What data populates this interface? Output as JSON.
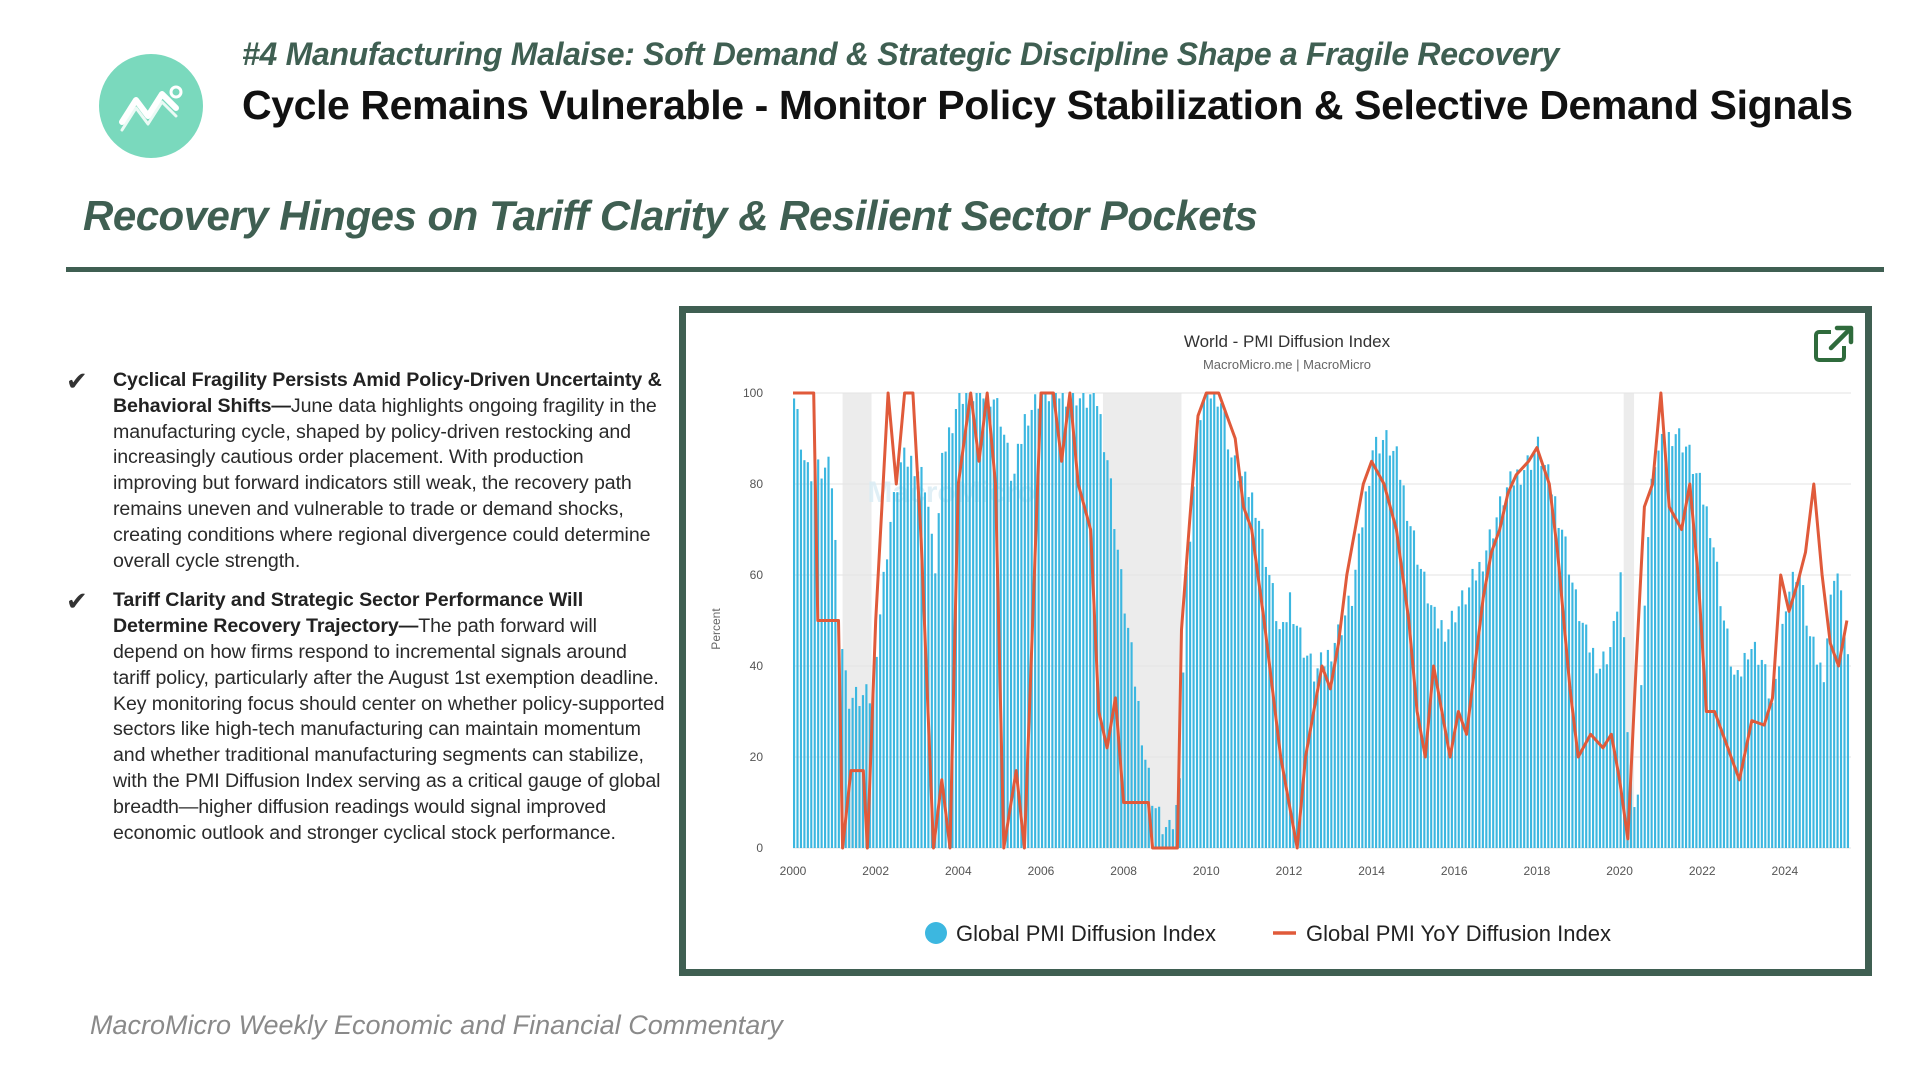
{
  "header": {
    "kicker": "#4 Manufacturing Malaise: Soft Demand & Strategic Discipline Shape a Fragile Recovery",
    "title": "Cycle Remains Vulnerable - Monitor Policy Stabilization & Selective Demand Signals",
    "logo_icon": "trend-chart-icon"
  },
  "section": {
    "title": "Recovery Hinges on Tariff Clarity & Resilient Sector Pockets"
  },
  "bullets": [
    {
      "icon": "checkmark-icon",
      "heading": "Cyclical Fragility Persists Amid Policy-Driven Uncertainty & Behavioral Shifts",
      "separator": "—",
      "body": "June data highlights ongoing fragility in the manufacturing cycle, shaped by policy-driven restocking and increasingly cautious order placement. With production improving but forward indicators still weak, the recovery path remains uneven and vulnerable to trade or demand shocks, creating conditions where regional divergence could determine overall cycle strength."
    },
    {
      "icon": "checkmark-icon",
      "heading": "Tariff Clarity and Strategic Sector Performance Will Determine Recovery Trajectory",
      "separator": "—",
      "body": "The path forward will depend on how firms respond to incremental signals around tariff policy, particularly after the August 1st exemption deadline. Key monitoring focus should center on whether policy-supported sectors like high-tech manufacturing can maintain momentum and whether traditional manufacturing segments can stabilize, with the PMI Diffusion Index serving as a critical gauge of global breadth—higher diffusion readings would signal improved economic outlook and stronger cyclical stock performance."
    }
  ],
  "chart_data": {
    "type": "bar",
    "title": "World - PMI Diffusion Index",
    "subtitle": "MacroMicro.me | MacroMicro",
    "ylabel": "Percent",
    "xlabel": "",
    "ylim": [
      0,
      100
    ],
    "yticks": [
      0,
      20,
      40,
      60,
      80,
      100
    ],
    "xlim": [
      2000,
      2025.6
    ],
    "xticks": [
      "2000",
      "2002",
      "2004",
      "2006",
      "2008",
      "2010",
      "2012",
      "2014",
      "2016",
      "2018",
      "2020",
      "2022",
      "2024"
    ],
    "grid": true,
    "watermark": "MacroMicro",
    "shaded_periods": [
      [
        2001.2,
        2001.9
      ],
      [
        2007.5,
        2009.4
      ],
      [
        2020.1,
        2020.35
      ]
    ],
    "colors": {
      "bar": "#3cb7e0",
      "line": "#e05a3a"
    },
    "legend": [
      "Global PMI Diffusion Index",
      "Global PMI YoY Diffusion Index"
    ],
    "series": [
      {
        "name": "Global PMI Diffusion Index",
        "kind": "bar",
        "points": [
          [
            2000.0,
            100
          ],
          [
            2000.3,
            83
          ],
          [
            2000.6,
            83
          ],
          [
            2000.9,
            83
          ],
          [
            2001.1,
            50
          ],
          [
            2001.3,
            33
          ],
          [
            2001.6,
            33
          ],
          [
            2001.9,
            33
          ],
          [
            2002.0,
            45
          ],
          [
            2002.3,
            70
          ],
          [
            2002.6,
            85
          ],
          [
            2002.9,
            85
          ],
          [
            2003.2,
            80
          ],
          [
            2003.4,
            60
          ],
          [
            2003.6,
            86
          ],
          [
            2004.0,
            100
          ],
          [
            2004.4,
            100
          ],
          [
            2004.8,
            100
          ],
          [
            2005.0,
            95
          ],
          [
            2005.3,
            80
          ],
          [
            2005.6,
            95
          ],
          [
            2006.0,
            100
          ],
          [
            2006.4,
            100
          ],
          [
            2006.8,
            100
          ],
          [
            2007.0,
            98
          ],
          [
            2007.3,
            100
          ],
          [
            2007.6,
            85
          ],
          [
            2007.9,
            60
          ],
          [
            2008.2,
            40
          ],
          [
            2008.5,
            20
          ],
          [
            2008.7,
            10
          ],
          [
            2008.9,
            5
          ],
          [
            2009.1,
            3
          ],
          [
            2009.3,
            10
          ],
          [
            2009.5,
            60
          ],
          [
            2009.8,
            95
          ],
          [
            2010.0,
            100
          ],
          [
            2010.3,
            100
          ],
          [
            2010.6,
            85
          ],
          [
            2010.9,
            80
          ],
          [
            2011.2,
            75
          ],
          [
            2011.5,
            60
          ],
          [
            2011.8,
            45
          ],
          [
            2012.0,
            55
          ],
          [
            2012.3,
            45
          ],
          [
            2012.6,
            38
          ],
          [
            2012.9,
            42
          ],
          [
            2013.2,
            48
          ],
          [
            2013.5,
            55
          ],
          [
            2013.8,
            75
          ],
          [
            2014.0,
            88
          ],
          [
            2014.3,
            90
          ],
          [
            2014.6,
            85
          ],
          [
            2014.9,
            72
          ],
          [
            2015.2,
            60
          ],
          [
            2015.5,
            50
          ],
          [
            2015.8,
            48
          ],
          [
            2016.0,
            52
          ],
          [
            2016.3,
            56
          ],
          [
            2016.6,
            62
          ],
          [
            2016.9,
            70
          ],
          [
            2017.2,
            78
          ],
          [
            2017.5,
            82
          ],
          [
            2017.8,
            85
          ],
          [
            2018.0,
            88
          ],
          [
            2018.3,
            80
          ],
          [
            2018.6,
            70
          ],
          [
            2018.9,
            55
          ],
          [
            2019.2,
            45
          ],
          [
            2019.5,
            40
          ],
          [
            2019.8,
            45
          ],
          [
            2020.0,
            60
          ],
          [
            2020.2,
            20
          ],
          [
            2020.4,
            8
          ],
          [
            2020.6,
            60
          ],
          [
            2020.8,
            85
          ],
          [
            2021.0,
            88
          ],
          [
            2021.3,
            92
          ],
          [
            2021.6,
            88
          ],
          [
            2021.9,
            80
          ],
          [
            2022.2,
            70
          ],
          [
            2022.5,
            50
          ],
          [
            2022.8,
            35
          ],
          [
            2023.1,
            45
          ],
          [
            2023.4,
            42
          ],
          [
            2023.7,
            30
          ],
          [
            2024.0,
            55
          ],
          [
            2024.3,
            62
          ],
          [
            2024.6,
            45
          ],
          [
            2024.9,
            38
          ],
          [
            2025.2,
            64
          ],
          [
            2025.5,
            42
          ]
        ]
      },
      {
        "name": "Global PMI YoY Diffusion Index",
        "kind": "line",
        "points": [
          [
            2000.0,
            100
          ],
          [
            2000.5,
            100
          ],
          [
            2000.6,
            50
          ],
          [
            2001.1,
            50
          ],
          [
            2001.2,
            0
          ],
          [
            2001.4,
            17
          ],
          [
            2001.7,
            17
          ],
          [
            2001.8,
            0
          ],
          [
            2002.0,
            50
          ],
          [
            2002.3,
            100
          ],
          [
            2002.5,
            80
          ],
          [
            2002.7,
            100
          ],
          [
            2002.9,
            100
          ],
          [
            2003.1,
            68
          ],
          [
            2003.4,
            0
          ],
          [
            2003.6,
            15
          ],
          [
            2003.8,
            0
          ],
          [
            2004.0,
            80
          ],
          [
            2004.3,
            100
          ],
          [
            2004.5,
            85
          ],
          [
            2004.7,
            100
          ],
          [
            2004.9,
            80
          ],
          [
            2005.1,
            0
          ],
          [
            2005.4,
            17
          ],
          [
            2005.6,
            0
          ],
          [
            2005.8,
            50
          ],
          [
            2006.0,
            100
          ],
          [
            2006.3,
            100
          ],
          [
            2006.5,
            85
          ],
          [
            2006.7,
            100
          ],
          [
            2006.9,
            80
          ],
          [
            2007.2,
            70
          ],
          [
            2007.4,
            30
          ],
          [
            2007.6,
            22
          ],
          [
            2007.8,
            33
          ],
          [
            2008.0,
            10
          ],
          [
            2008.3,
            10
          ],
          [
            2008.6,
            10
          ],
          [
            2008.7,
            0
          ],
          [
            2009.0,
            0
          ],
          [
            2009.3,
            0
          ],
          [
            2009.4,
            48
          ],
          [
            2009.6,
            72
          ],
          [
            2009.8,
            95
          ],
          [
            2010.0,
            100
          ],
          [
            2010.3,
            100
          ],
          [
            2010.5,
            95
          ],
          [
            2010.7,
            90
          ],
          [
            2010.9,
            75
          ],
          [
            2011.1,
            70
          ],
          [
            2011.4,
            50
          ],
          [
            2011.6,
            35
          ],
          [
            2011.8,
            20
          ],
          [
            2012.0,
            10
          ],
          [
            2012.2,
            0
          ],
          [
            2012.4,
            20
          ],
          [
            2012.6,
            30
          ],
          [
            2012.8,
            40
          ],
          [
            2013.0,
            35
          ],
          [
            2013.2,
            45
          ],
          [
            2013.4,
            60
          ],
          [
            2013.6,
            70
          ],
          [
            2013.8,
            80
          ],
          [
            2014.0,
            85
          ],
          [
            2014.3,
            80
          ],
          [
            2014.6,
            70
          ],
          [
            2014.9,
            50
          ],
          [
            2015.1,
            30
          ],
          [
            2015.3,
            20
          ],
          [
            2015.5,
            40
          ],
          [
            2015.7,
            30
          ],
          [
            2015.9,
            20
          ],
          [
            2016.1,
            30
          ],
          [
            2016.3,
            25
          ],
          [
            2016.5,
            40
          ],
          [
            2016.7,
            55
          ],
          [
            2016.9,
            65
          ],
          [
            2017.1,
            70
          ],
          [
            2017.3,
            78
          ],
          [
            2017.5,
            82
          ],
          [
            2017.8,
            85
          ],
          [
            2018.0,
            88
          ],
          [
            2018.3,
            80
          ],
          [
            2018.5,
            65
          ],
          [
            2018.8,
            35
          ],
          [
            2019.0,
            20
          ],
          [
            2019.3,
            25
          ],
          [
            2019.6,
            22
          ],
          [
            2019.8,
            25
          ],
          [
            2020.0,
            15
          ],
          [
            2020.2,
            2
          ],
          [
            2020.4,
            40
          ],
          [
            2020.6,
            75
          ],
          [
            2020.8,
            80
          ],
          [
            2021.0,
            100
          ],
          [
            2021.2,
            75
          ],
          [
            2021.5,
            70
          ],
          [
            2021.7,
            80
          ],
          [
            2021.9,
            60
          ],
          [
            2022.1,
            30
          ],
          [
            2022.3,
            30
          ],
          [
            2022.5,
            25
          ],
          [
            2022.7,
            20
          ],
          [
            2022.9,
            15
          ],
          [
            2023.2,
            28
          ],
          [
            2023.5,
            27
          ],
          [
            2023.7,
            33
          ],
          [
            2023.9,
            60
          ],
          [
            2024.1,
            52
          ],
          [
            2024.3,
            58
          ],
          [
            2024.5,
            65
          ],
          [
            2024.7,
            80
          ],
          [
            2024.9,
            60
          ],
          [
            2025.1,
            45
          ],
          [
            2025.3,
            40
          ],
          [
            2025.5,
            50
          ]
        ]
      }
    ]
  },
  "footer": {
    "text": "MacroMicro Weekly Economic and Financial Commentary"
  }
}
